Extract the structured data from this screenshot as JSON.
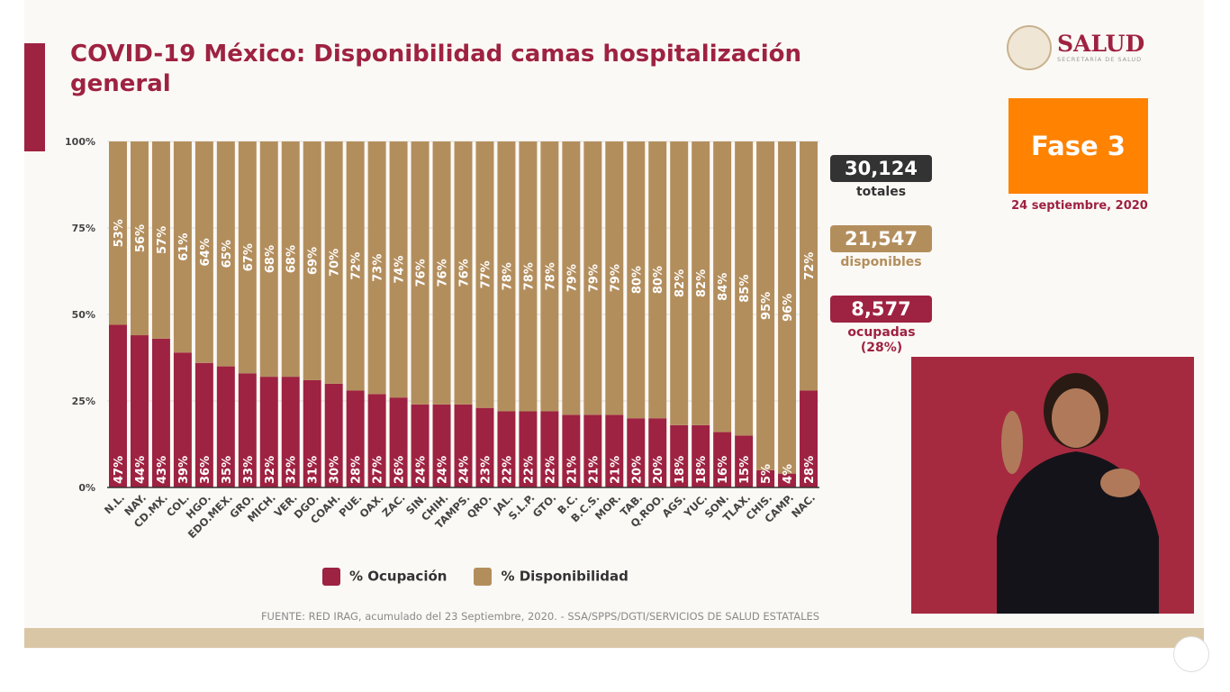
{
  "header": {
    "title": "COVID-19 México: Disponibilidad camas hospitalización general"
  },
  "logo": {
    "name": "SALUD",
    "subtitle": "SECRETARÍA DE SALUD"
  },
  "phase": {
    "label": "Fase 3",
    "color": "#ff8200"
  },
  "date": "24 septiembre, 2020",
  "stats": [
    {
      "value": "30,124",
      "label": "totales",
      "color": "#333333"
    },
    {
      "value": "21,547",
      "label": "disponibles",
      "color": "#b38e5d"
    },
    {
      "value": "8,577",
      "label": "ocupadas (28%)",
      "color": "#9e2241"
    }
  ],
  "source": "FUENTE: RED IRAG, acumulado del 23 Septiembre, 2020. -  SSA/SPPS/DGTI/SERVICIOS DE SALUD ESTATALES",
  "chart_data": {
    "type": "bar",
    "stacked": true,
    "categories": [
      "N.L.",
      "NAY.",
      "CD.MX.",
      "COL.",
      "HGO.",
      "EDO.MEX.",
      "GRO.",
      "MICH.",
      "VER.",
      "DGO.",
      "COAH.",
      "PUE.",
      "OAX.",
      "ZAC.",
      "SIN.",
      "CHIH.",
      "TAMPS.",
      "QRO.",
      "JAL.",
      "S.L.P.",
      "GTO.",
      "B.C.",
      "B.C.S.",
      "MOR.",
      "TAB.",
      "Q.ROO.",
      "AGS.",
      "YUC.",
      "SON.",
      "TLAX.",
      "CHIS.",
      "CAMP.",
      "NAC."
    ],
    "series": [
      {
        "name": "% Ocupación",
        "color": "#9e2241",
        "values": [
          47,
          44,
          43,
          39,
          36,
          35,
          33,
          32,
          32,
          31,
          30,
          28,
          27,
          26,
          24,
          24,
          24,
          23,
          22,
          22,
          22,
          21,
          21,
          21,
          20,
          20,
          18,
          18,
          16,
          15,
          5,
          4,
          28
        ]
      },
      {
        "name": "% Disponibilidad",
        "color": "#b38e5d",
        "values": [
          53,
          56,
          57,
          61,
          64,
          65,
          67,
          68,
          68,
          69,
          70,
          72,
          73,
          74,
          76,
          76,
          76,
          77,
          78,
          78,
          78,
          79,
          79,
          79,
          80,
          80,
          82,
          82,
          84,
          85,
          95,
          96,
          72
        ]
      }
    ],
    "yticks": [
      "0%",
      "25%",
      "50%",
      "75%",
      "100%"
    ],
    "ylim": [
      0,
      100
    ],
    "grid": true,
    "legend": "bottom"
  }
}
